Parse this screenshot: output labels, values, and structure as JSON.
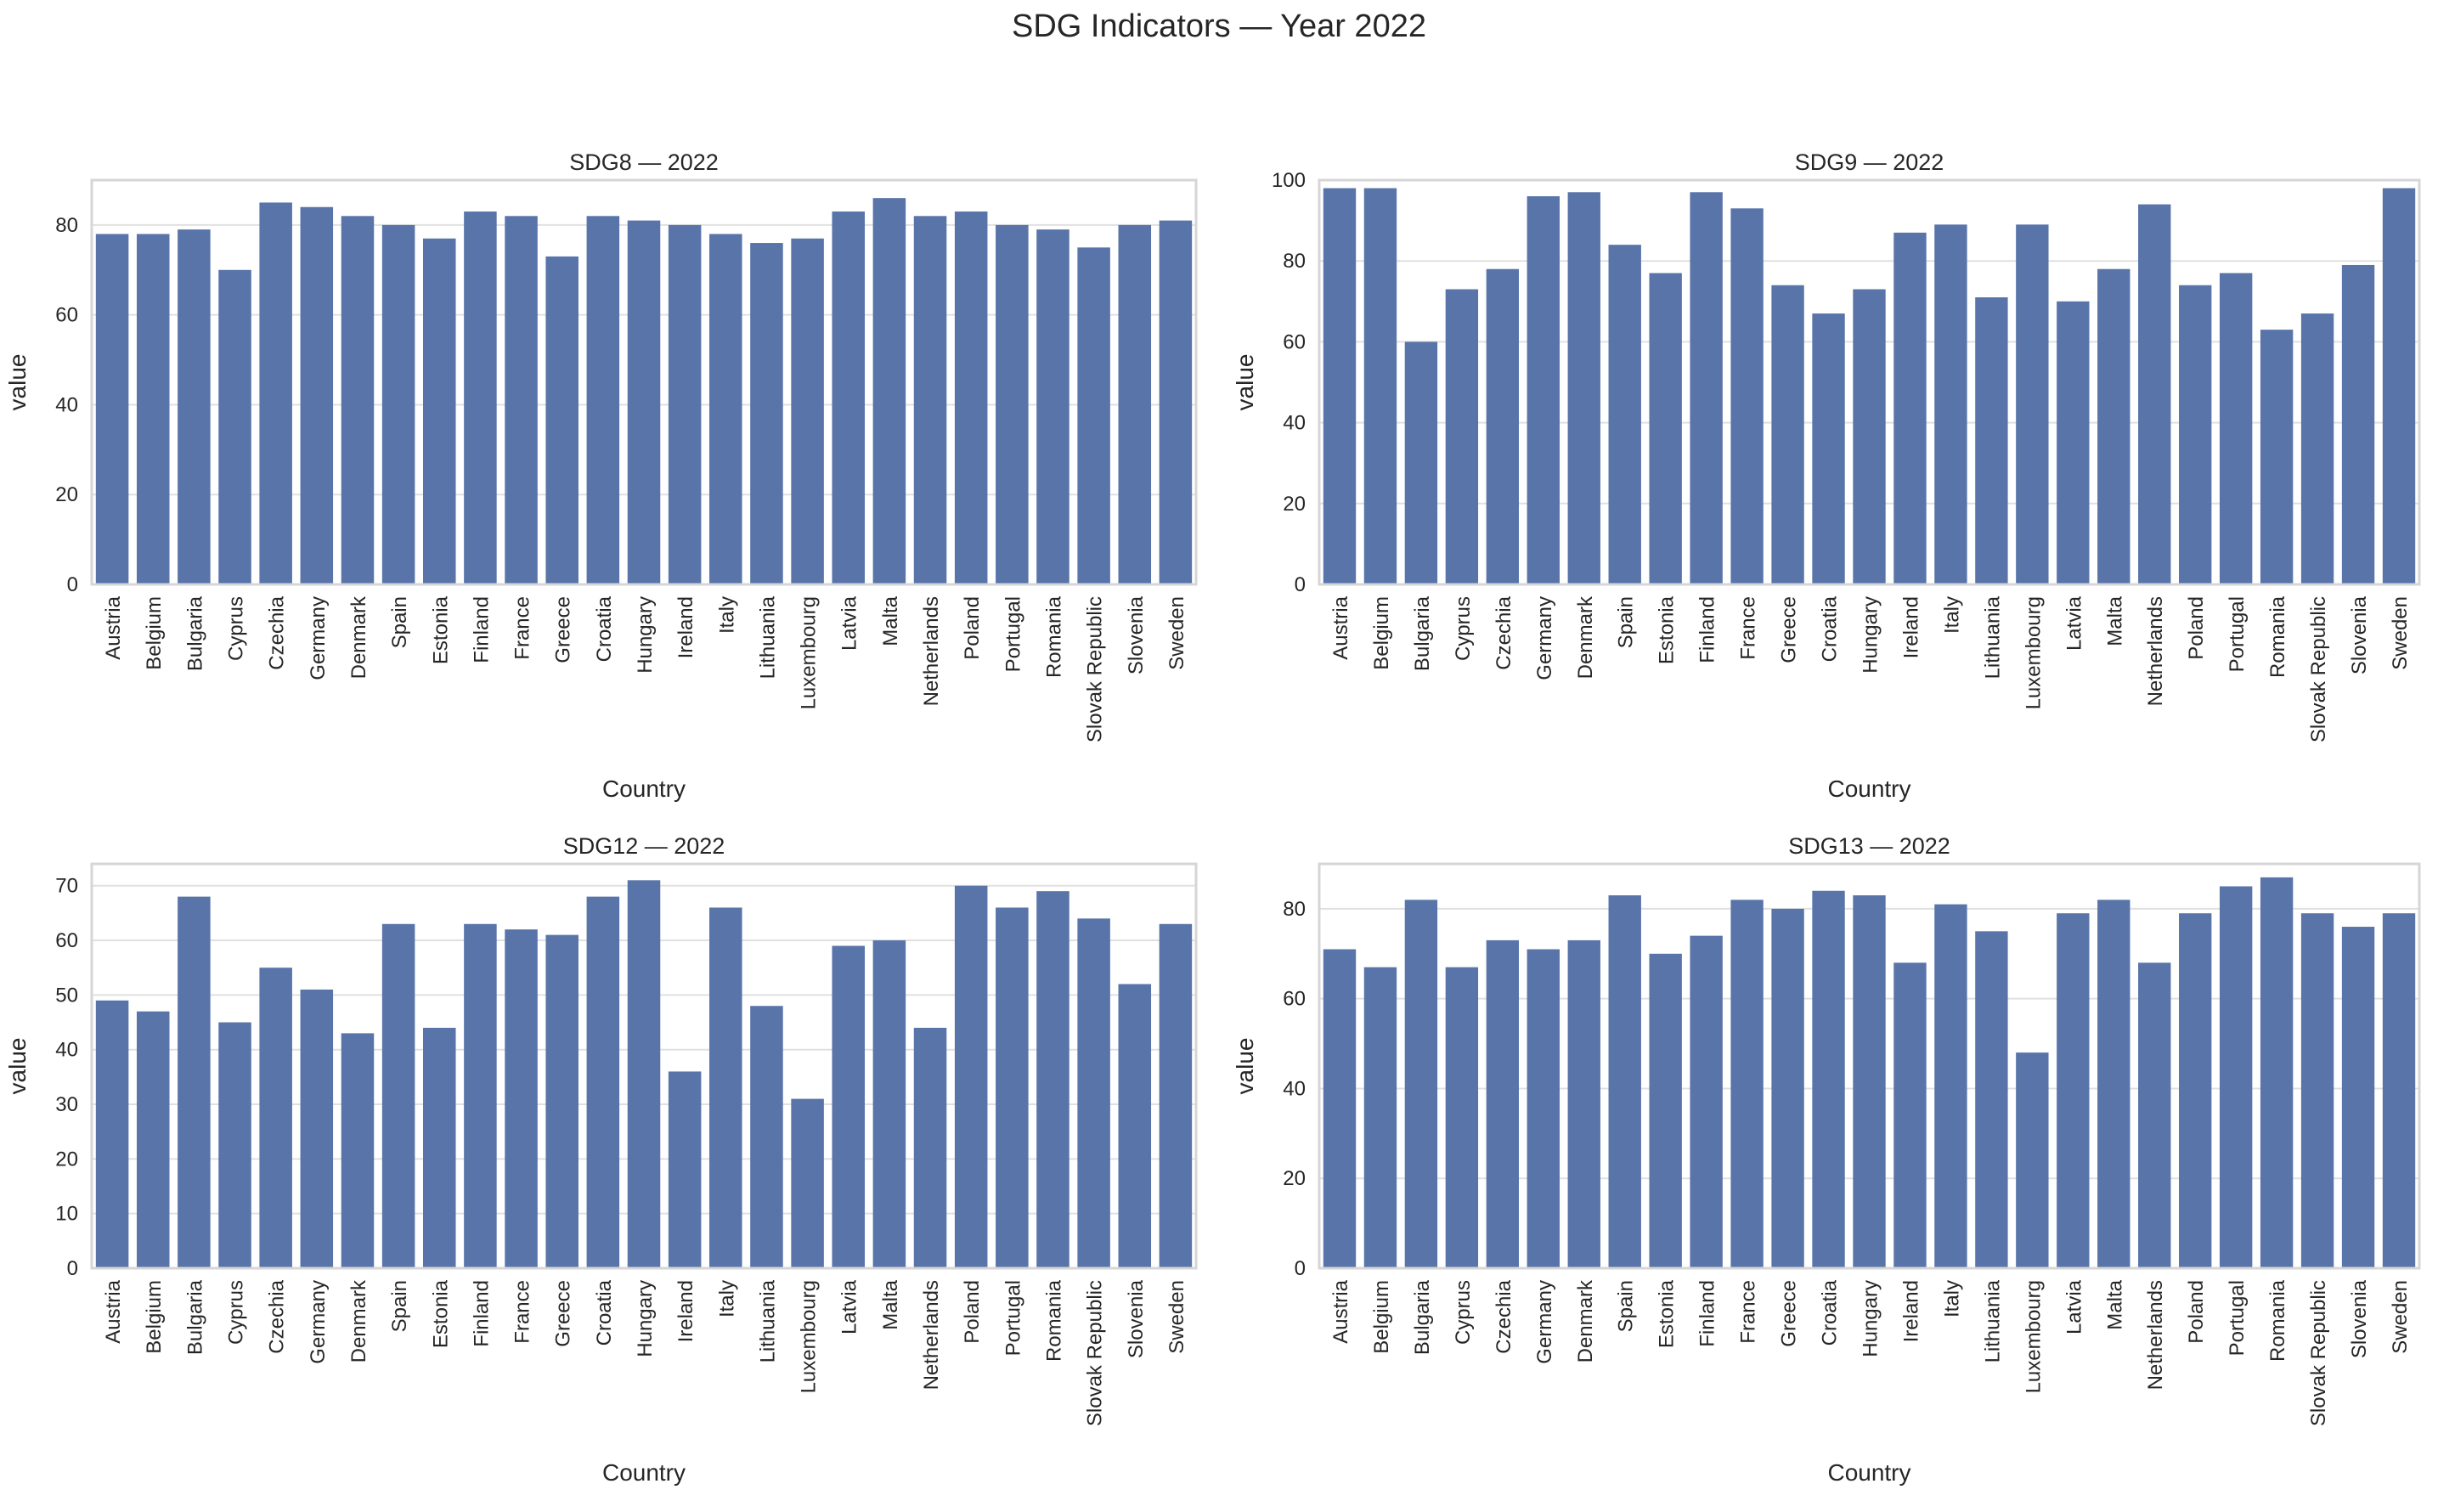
{
  "figure_title": "SDG Indicators — Year 2022",
  "colors": {
    "bar": "#5874a9",
    "grid": "#e0e0e0",
    "frame": "#d6d6d6",
    "background": "#ffffff"
  },
  "chart_data": [
    {
      "type": "bar",
      "title": "SDG8 — 2022",
      "xlabel": "Country",
      "ylabel": "value",
      "ylim": [
        0,
        90
      ],
      "yticks": [
        0,
        20,
        40,
        60,
        80
      ],
      "grid": true,
      "categories": [
        "Austria",
        "Belgium",
        "Bulgaria",
        "Cyprus",
        "Czechia",
        "Germany",
        "Denmark",
        "Spain",
        "Estonia",
        "Finland",
        "France",
        "Greece",
        "Croatia",
        "Hungary",
        "Ireland",
        "Italy",
        "Lithuania",
        "Luxembourg",
        "Latvia",
        "Malta",
        "Netherlands",
        "Poland",
        "Portugal",
        "Romania",
        "Slovak Republic",
        "Slovenia",
        "Sweden"
      ],
      "values": [
        78,
        78,
        79,
        70,
        85,
        84,
        82,
        80,
        77,
        83,
        82,
        73,
        82,
        81,
        80,
        78,
        76,
        77,
        83,
        86,
        82,
        83,
        80,
        79,
        75,
        80,
        81
      ]
    },
    {
      "type": "bar",
      "title": "SDG9 — 2022",
      "xlabel": "Country",
      "ylabel": "value",
      "ylim": [
        0,
        100
      ],
      "yticks": [
        0,
        20,
        40,
        60,
        80,
        100
      ],
      "grid": true,
      "categories": [
        "Austria",
        "Belgium",
        "Bulgaria",
        "Cyprus",
        "Czechia",
        "Germany",
        "Denmark",
        "Spain",
        "Estonia",
        "Finland",
        "France",
        "Greece",
        "Croatia",
        "Hungary",
        "Ireland",
        "Italy",
        "Lithuania",
        "Luxembourg",
        "Latvia",
        "Malta",
        "Netherlands",
        "Poland",
        "Portugal",
        "Romania",
        "Slovak Republic",
        "Slovenia",
        "Sweden"
      ],
      "values": [
        98,
        98,
        60,
        73,
        78,
        96,
        97,
        84,
        77,
        97,
        93,
        74,
        67,
        73,
        87,
        89,
        71,
        89,
        70,
        78,
        94,
        74,
        77,
        63,
        67,
        79,
        98
      ]
    },
    {
      "type": "bar",
      "title": "SDG12 — 2022",
      "xlabel": "Country",
      "ylabel": "value",
      "ylim": [
        0,
        74
      ],
      "yticks": [
        0,
        10,
        20,
        30,
        40,
        50,
        60,
        70
      ],
      "grid": true,
      "categories": [
        "Austria",
        "Belgium",
        "Bulgaria",
        "Cyprus",
        "Czechia",
        "Germany",
        "Denmark",
        "Spain",
        "Estonia",
        "Finland",
        "France",
        "Greece",
        "Croatia",
        "Hungary",
        "Ireland",
        "Italy",
        "Lithuania",
        "Luxembourg",
        "Latvia",
        "Malta",
        "Netherlands",
        "Poland",
        "Portugal",
        "Romania",
        "Slovak Republic",
        "Slovenia",
        "Sweden"
      ],
      "values": [
        49,
        47,
        68,
        45,
        55,
        51,
        43,
        63,
        44,
        63,
        62,
        61,
        68,
        71,
        36,
        66,
        48,
        31,
        59,
        60,
        44,
        70,
        66,
        69,
        64,
        52,
        63
      ]
    },
    {
      "type": "bar",
      "title": "SDG13 — 2022",
      "xlabel": "Country",
      "ylabel": "value",
      "ylim": [
        0,
        90
      ],
      "yticks": [
        0,
        20,
        40,
        60,
        80
      ],
      "grid": true,
      "categories": [
        "Austria",
        "Belgium",
        "Bulgaria",
        "Cyprus",
        "Czechia",
        "Germany",
        "Denmark",
        "Spain",
        "Estonia",
        "Finland",
        "France",
        "Greece",
        "Croatia",
        "Hungary",
        "Ireland",
        "Italy",
        "Lithuania",
        "Luxembourg",
        "Latvia",
        "Malta",
        "Netherlands",
        "Poland",
        "Portugal",
        "Romania",
        "Slovak Republic",
        "Slovenia",
        "Sweden"
      ],
      "values": [
        71,
        67,
        82,
        67,
        73,
        71,
        73,
        83,
        70,
        74,
        82,
        80,
        84,
        83,
        68,
        81,
        75,
        48,
        79,
        82,
        68,
        79,
        85,
        87,
        79,
        76,
        79
      ]
    }
  ]
}
